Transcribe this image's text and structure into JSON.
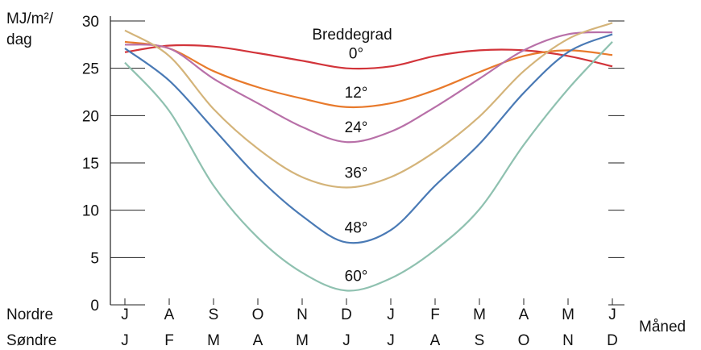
{
  "chart_data": {
    "type": "line",
    "y_label": [
      "MJ/m²/",
      "dag"
    ],
    "x_label": "Måned",
    "legend_title": "Breddegrad",
    "row_labels": [
      "Nordre",
      "Søndre"
    ],
    "categories": [
      "J",
      "A",
      "S",
      "O",
      "N",
      "D",
      "J",
      "F",
      "M",
      "A",
      "M",
      "J"
    ],
    "categories_south": [
      "J",
      "F",
      "M",
      "A",
      "M",
      "J",
      "J",
      "A",
      "S",
      "O",
      "N",
      "D"
    ],
    "ylim": [
      0,
      30
    ],
    "yticks": [
      0,
      5,
      10,
      15,
      20,
      25,
      30
    ],
    "series": [
      {
        "name": "0°",
        "color": "#d2343a",
        "values": [
          26.7,
          27.4,
          27.3,
          26.6,
          25.8,
          25.0,
          25.2,
          26.3,
          26.9,
          26.9,
          26.3,
          25.2
        ]
      },
      {
        "name": "12°",
        "color": "#e87a2c",
        "values": [
          27.8,
          27.1,
          24.7,
          23.0,
          21.8,
          20.9,
          21.3,
          22.7,
          24.6,
          26.3,
          26.9,
          26.4
        ]
      },
      {
        "name": "24°",
        "color": "#b870a8",
        "values": [
          27.5,
          27.1,
          23.9,
          21.3,
          18.8,
          17.2,
          18.3,
          20.9,
          23.9,
          26.9,
          28.6,
          28.8
        ]
      },
      {
        "name": "36°",
        "color": "#d4b47a",
        "values": [
          29.0,
          26.3,
          20.7,
          16.5,
          13.5,
          12.4,
          13.5,
          16.2,
          19.9,
          24.7,
          28.1,
          29.8
        ]
      },
      {
        "name": "48°",
        "color": "#4a7ab5",
        "values": [
          27.1,
          23.7,
          18.6,
          13.5,
          9.4,
          6.6,
          7.9,
          12.6,
          17.0,
          22.4,
          26.7,
          28.6
        ]
      },
      {
        "name": "60°",
        "color": "#8fc1b0",
        "values": [
          25.6,
          20.5,
          12.6,
          7.1,
          3.4,
          1.5,
          2.8,
          5.8,
          10.1,
          16.9,
          22.8,
          27.8
        ]
      }
    ]
  }
}
